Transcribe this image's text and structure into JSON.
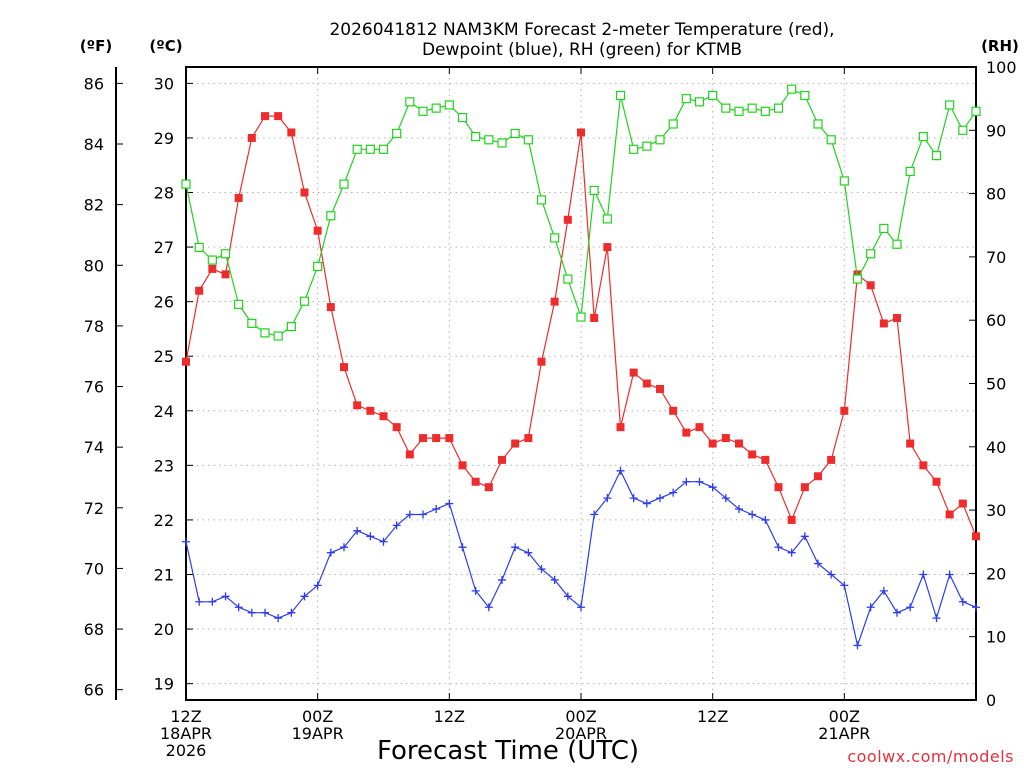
{
  "chart_data": {
    "type": "line",
    "title_lines": [
      "2026041812 NAM3KM Forecast 2-meter Temperature (red),",
      "Dewpoint (blue), RH (green) for KTMB"
    ],
    "xlabel": "Forecast Time (UTC)",
    "credit": "coolwx.com/models",
    "left_unit_f": "(ºF)",
    "left_unit_c": "(ºC)",
    "right_unit": "(RH)",
    "x_hours_range": [
      0,
      72
    ],
    "x_ticks": [
      {
        "hour": 0,
        "lines": [
          "12Z",
          "18APR",
          "2026"
        ]
      },
      {
        "hour": 12,
        "lines": [
          "00Z",
          "19APR"
        ]
      },
      {
        "hour": 24,
        "lines": [
          "12Z"
        ]
      },
      {
        "hour": 36,
        "lines": [
          "00Z",
          "20APR"
        ]
      },
      {
        "hour": 48,
        "lines": [
          "12Z"
        ]
      },
      {
        "hour": 60,
        "lines": [
          "00Z",
          "21APR"
        ]
      }
    ],
    "celsius_range": [
      18.7,
      30.3
    ],
    "celsius_ticks": [
      "19",
      "20",
      "21",
      "22",
      "23",
      "24",
      "25",
      "26",
      "27",
      "28",
      "29",
      "30"
    ],
    "fahrenheit_ticks": [
      "66",
      "68",
      "70",
      "72",
      "74",
      "76",
      "78",
      "80",
      "82",
      "84",
      "86"
    ],
    "rh_range": [
      0,
      100
    ],
    "rh_ticks": [
      "0",
      "10",
      "20",
      "30",
      "40",
      "50",
      "60",
      "70",
      "80",
      "90",
      "100"
    ],
    "series": [
      {
        "name": "2-meter Temperature",
        "units": "C",
        "color": "#ee2c2c",
        "marker": "filled-square",
        "values": [
          24.9,
          26.2,
          26.6,
          26.5,
          27.9,
          29.0,
          29.4,
          29.4,
          29.1,
          28.0,
          27.3,
          25.9,
          24.8,
          24.1,
          24.0,
          23.9,
          23.7,
          23.2,
          23.5,
          23.5,
          23.5,
          23.0,
          22.7,
          22.6,
          23.1,
          23.4,
          23.5,
          24.9,
          26.0,
          27.5,
          29.1,
          25.7,
          27.0,
          23.7,
          24.7,
          24.5,
          24.4,
          24.0,
          23.6,
          23.7,
          23.4,
          23.5,
          23.4,
          23.2,
          23.1,
          22.6,
          22.0,
          22.6,
          22.8,
          23.1,
          24.0,
          26.5,
          26.3,
          25.6,
          25.7,
          23.4,
          23.0,
          22.7,
          22.1,
          22.3,
          21.7
        ]
      },
      {
        "name": "Dewpoint",
        "units": "C",
        "color": "#2c3cee",
        "marker": "plus",
        "values": [
          21.6,
          20.5,
          20.5,
          20.6,
          20.4,
          20.3,
          20.3,
          20.2,
          20.3,
          20.6,
          20.8,
          21.4,
          21.5,
          21.8,
          21.7,
          21.6,
          21.9,
          22.1,
          22.1,
          22.2,
          22.3,
          21.5,
          20.7,
          20.4,
          20.9,
          21.5,
          21.4,
          21.1,
          20.9,
          20.6,
          20.4,
          22.1,
          22.4,
          22.9,
          22.4,
          22.3,
          22.4,
          22.5,
          22.7,
          22.7,
          22.6,
          22.4,
          22.2,
          22.1,
          22.0,
          21.5,
          21.4,
          21.7,
          21.2,
          21.0,
          20.8,
          19.7,
          20.4,
          20.7,
          20.3,
          20.4,
          21.0,
          20.2,
          21.0,
          20.5,
          20.4
        ]
      },
      {
        "name": "RH",
        "units": "%",
        "color": "#22d31e",
        "marker": "open-square",
        "values": [
          81.5,
          71.5,
          69.5,
          70.5,
          62.5,
          59.5,
          58.0,
          57.5,
          59.0,
          63.0,
          68.5,
          76.5,
          81.5,
          87.0,
          87.0,
          87.0,
          89.5,
          94.5,
          93.0,
          93.5,
          94.0,
          92.0,
          89.0,
          88.5,
          88.0,
          89.5,
          88.5,
          79.0,
          73.0,
          66.5,
          60.5,
          80.5,
          76.0,
          95.5,
          87.0,
          87.5,
          88.5,
          91.0,
          95.0,
          94.5,
          95.5,
          93.5,
          93.0,
          93.5,
          93.0,
          93.5,
          96.5,
          95.5,
          91.0,
          88.5,
          82.0,
          66.5,
          70.5,
          74.5,
          72.0,
          83.5,
          89.0,
          86.0,
          94.0,
          90.0,
          93.0
        ]
      }
    ]
  }
}
